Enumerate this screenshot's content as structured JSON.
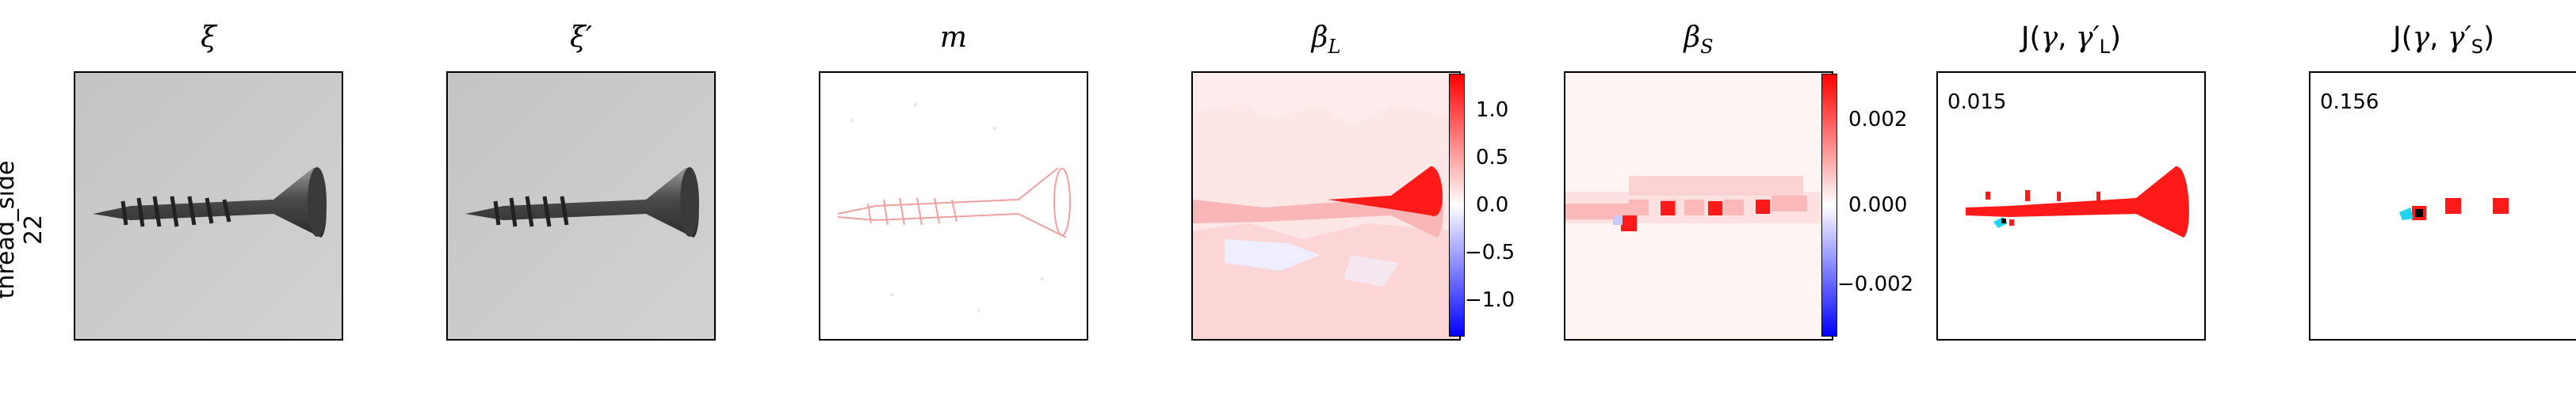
{
  "row": {
    "label_line1": "thread_side",
    "label_line2": "22"
  },
  "panels": [
    {
      "title": "ξ"
    },
    {
      "title": "ξ′"
    },
    {
      "title": "m"
    },
    {
      "title_main": "β",
      "title_sub": "L"
    },
    {
      "title_main": "β",
      "title_sub": "S"
    },
    {
      "title_prefix": "J(",
      "title_gamma": "γ",
      "title_sep": ", ",
      "title_gamma2": "γ′",
      "title_sub": "L",
      "title_suffix": ")",
      "score": "0.015"
    },
    {
      "title_prefix": "J(",
      "title_gamma": "γ",
      "title_sep": ", ",
      "title_gamma2": "γ′",
      "title_sub": "S",
      "title_suffix": ")",
      "score": "0.156"
    }
  ],
  "colorbar_L": {
    "ticks": [
      "1.0",
      "0.5",
      "0.0",
      "−0.5",
      "−1.0"
    ],
    "colors": {
      "top": "#ff0000",
      "mid": "#ffffff",
      "bottom": "#0000ff"
    }
  },
  "colorbar_S": {
    "ticks": [
      "0.002",
      "0.000",
      "−0.002"
    ],
    "colors": {
      "top": "#ff0000",
      "mid": "#ffffff",
      "bottom": "#0000ff"
    }
  }
}
